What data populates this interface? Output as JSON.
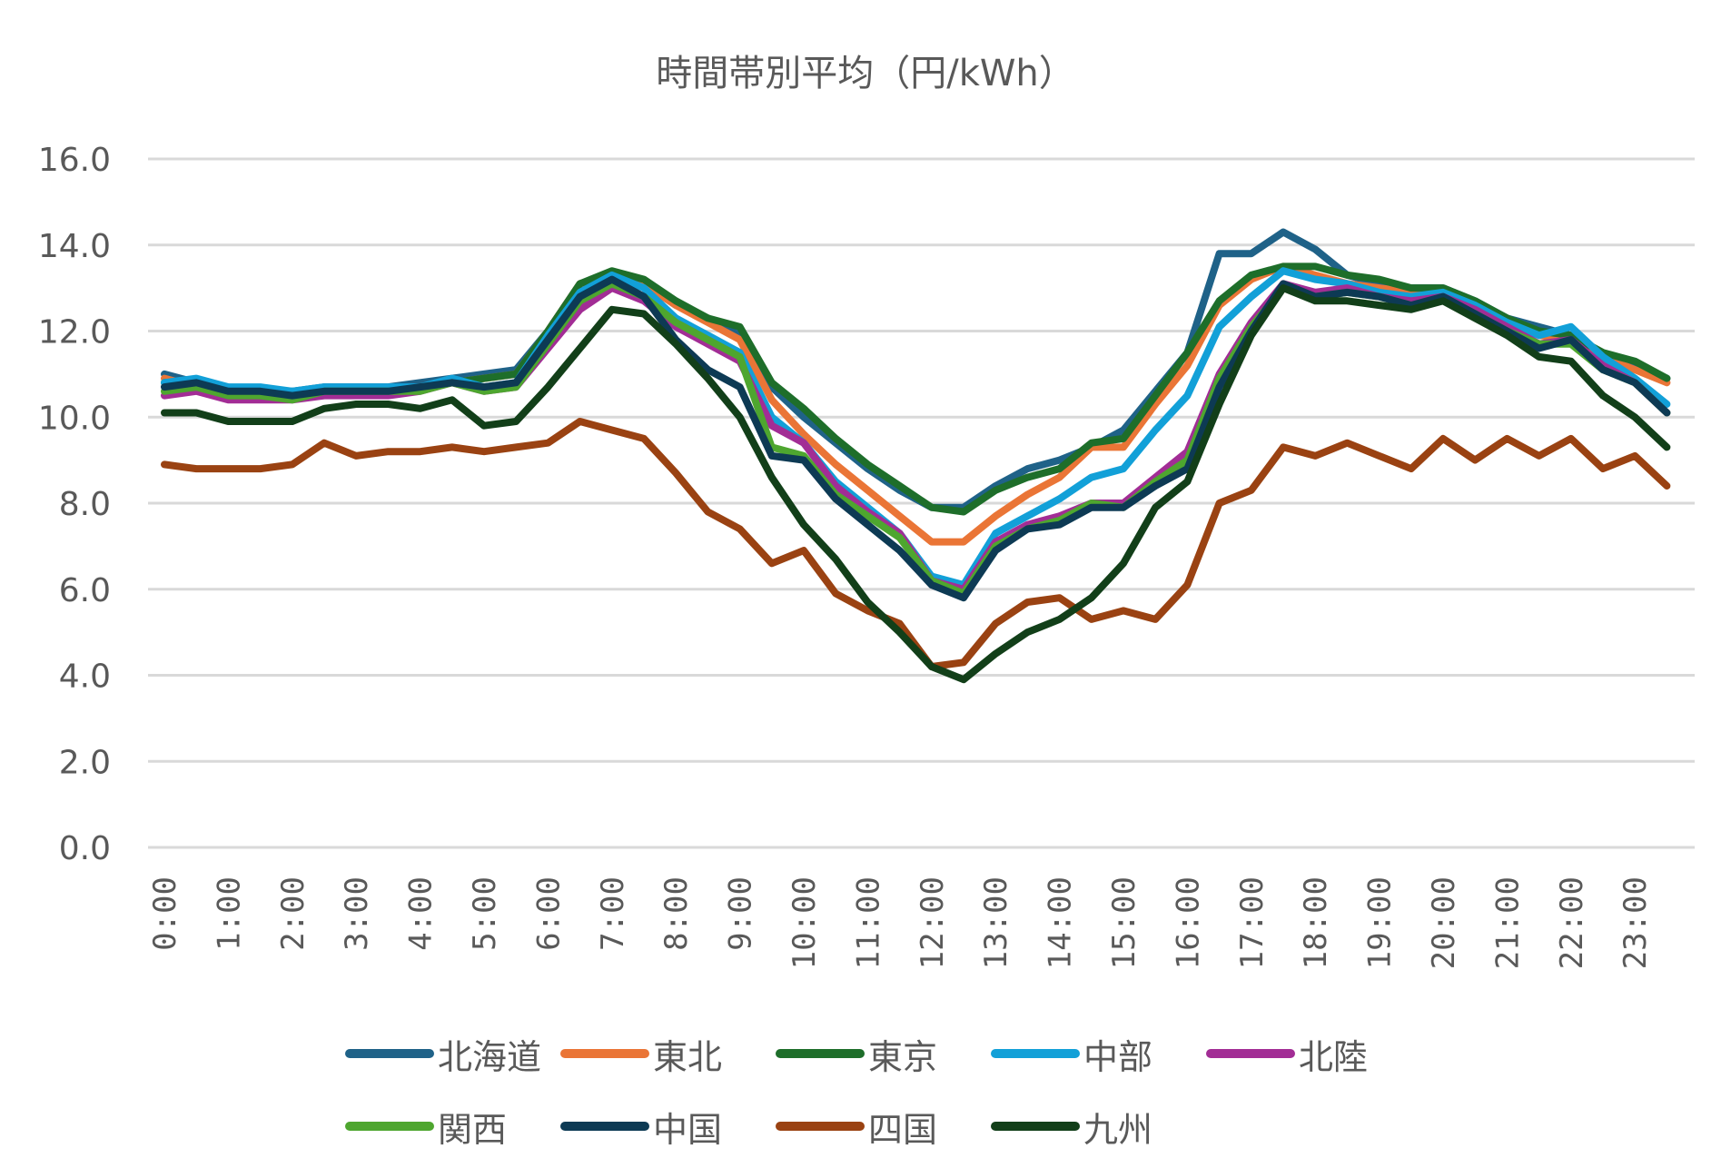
{
  "chart_data": {
    "type": "line",
    "title": "時間帯別平均（円/kWh）",
    "xlabel": "",
    "ylabel": "",
    "ylim": [
      0,
      16
    ],
    "yticks": [
      "0.0",
      "2.0",
      "4.0",
      "6.0",
      "8.0",
      "10.0",
      "12.0",
      "14.0",
      "16.0"
    ],
    "grid": true,
    "legend_position": "bottom",
    "x": [
      "0:00",
      "0:30",
      "1:00",
      "1:30",
      "2:00",
      "2:30",
      "3:00",
      "3:30",
      "4:00",
      "4:30",
      "5:00",
      "5:30",
      "6:00",
      "6:30",
      "7:00",
      "7:30",
      "8:00",
      "8:30",
      "9:00",
      "9:30",
      "10:00",
      "10:30",
      "11:00",
      "11:30",
      "12:00",
      "12:30",
      "13:00",
      "13:30",
      "14:00",
      "14:30",
      "15:00",
      "15:30",
      "16:00",
      "16:30",
      "17:00",
      "17:30",
      "18:00",
      "18:30",
      "19:00",
      "19:30",
      "20:00",
      "20:30",
      "21:00",
      "21:30",
      "22:00",
      "22:30",
      "23:00",
      "23:30"
    ],
    "xtick_labels": [
      "0:00",
      "1:00",
      "2:00",
      "3:00",
      "4:00",
      "5:00",
      "6:00",
      "7:00",
      "8:00",
      "9:00",
      "10:00",
      "11:00",
      "12:00",
      "13:00",
      "14:00",
      "15:00",
      "16:00",
      "17:00",
      "18:00",
      "19:00",
      "20:00",
      "21:00",
      "22:00",
      "23:00"
    ],
    "series": [
      {
        "name": "北海道",
        "color": "#1f6288",
        "values": [
          11.0,
          10.8,
          10.6,
          10.6,
          10.6,
          10.7,
          10.7,
          10.7,
          10.8,
          10.9,
          11.0,
          11.1,
          12.0,
          13.1,
          13.3,
          13.1,
          12.6,
          12.3,
          11.9,
          10.7,
          10.0,
          9.4,
          8.8,
          8.3,
          7.9,
          7.9,
          8.4,
          8.8,
          9.0,
          9.3,
          9.7,
          10.6,
          11.5,
          13.8,
          13.8,
          14.3,
          13.9,
          13.3,
          13.1,
          13.0,
          13.0,
          12.7,
          12.3,
          12.1,
          11.9,
          11.4,
          11.2,
          10.9
        ]
      },
      {
        "name": "東北",
        "color": "#ea7536",
        "values": [
          10.9,
          10.7,
          10.6,
          10.6,
          10.5,
          10.6,
          10.6,
          10.6,
          10.7,
          10.8,
          10.9,
          11.0,
          12.0,
          13.1,
          13.3,
          13.1,
          12.6,
          12.2,
          11.8,
          10.4,
          9.6,
          8.9,
          8.3,
          7.7,
          7.1,
          7.1,
          7.7,
          8.2,
          8.6,
          9.3,
          9.3,
          10.3,
          11.2,
          12.6,
          13.2,
          13.5,
          13.3,
          13.1,
          13.0,
          12.9,
          12.9,
          12.6,
          12.2,
          11.9,
          11.8,
          11.4,
          11.1,
          10.8
        ]
      },
      {
        "name": "東京",
        "color": "#1e6e2a",
        "values": [
          10.8,
          10.8,
          10.6,
          10.6,
          10.5,
          10.6,
          10.6,
          10.6,
          10.7,
          10.8,
          10.9,
          11.0,
          12.0,
          13.1,
          13.4,
          13.2,
          12.7,
          12.3,
          12.1,
          10.8,
          10.2,
          9.5,
          8.9,
          8.4,
          7.9,
          7.8,
          8.3,
          8.6,
          8.8,
          9.4,
          9.5,
          10.5,
          11.5,
          12.7,
          13.3,
          13.5,
          13.5,
          13.3,
          13.2,
          13.0,
          13.0,
          12.7,
          12.3,
          12.0,
          11.9,
          11.5,
          11.3,
          10.9
        ]
      },
      {
        "name": "中部",
        "color": "#12a0d8",
        "values": [
          10.8,
          10.9,
          10.7,
          10.7,
          10.6,
          10.7,
          10.7,
          10.7,
          10.7,
          10.9,
          10.7,
          10.8,
          11.9,
          12.9,
          13.3,
          13.0,
          12.3,
          11.9,
          11.5,
          10.0,
          9.4,
          8.5,
          7.9,
          7.3,
          6.3,
          6.1,
          7.3,
          7.7,
          8.1,
          8.6,
          8.8,
          9.7,
          10.5,
          12.1,
          12.8,
          13.4,
          13.2,
          13.1,
          12.9,
          12.8,
          12.9,
          12.6,
          12.2,
          11.9,
          12.1,
          11.4,
          10.9,
          10.3
        ]
      },
      {
        "name": "北陸",
        "color": "#a22d95",
        "values": [
          10.5,
          10.6,
          10.4,
          10.4,
          10.4,
          10.5,
          10.5,
          10.5,
          10.6,
          10.8,
          10.6,
          10.7,
          11.6,
          12.5,
          13.0,
          12.7,
          12.1,
          11.7,
          11.3,
          9.8,
          9.4,
          8.4,
          7.8,
          7.3,
          6.2,
          6.0,
          7.1,
          7.5,
          7.7,
          8.0,
          8.0,
          8.6,
          9.2,
          11.0,
          12.2,
          13.1,
          12.9,
          13.0,
          12.8,
          12.7,
          12.8,
          12.5,
          12.1,
          11.7,
          11.8,
          11.2,
          10.8,
          10.1
        ]
      },
      {
        "name": "関西",
        "color": "#4ea62f",
        "values": [
          10.6,
          10.7,
          10.5,
          10.5,
          10.4,
          10.6,
          10.6,
          10.6,
          10.6,
          10.8,
          10.6,
          10.7,
          11.7,
          12.7,
          13.1,
          12.8,
          12.2,
          11.8,
          11.4,
          9.3,
          9.1,
          8.2,
          7.7,
          7.2,
          6.2,
          5.9,
          7.0,
          7.4,
          7.6,
          8.0,
          7.9,
          8.5,
          9.0,
          10.9,
          12.1,
          13.0,
          12.8,
          12.9,
          12.8,
          12.6,
          12.7,
          12.4,
          12.0,
          11.7,
          11.7,
          11.1,
          10.8,
          10.1
        ]
      },
      {
        "name": "中国",
        "color": "#0d3a54",
        "values": [
          10.7,
          10.8,
          10.6,
          10.6,
          10.5,
          10.6,
          10.6,
          10.6,
          10.7,
          10.8,
          10.7,
          10.8,
          11.8,
          12.8,
          13.2,
          12.8,
          11.8,
          11.1,
          10.7,
          9.1,
          9.0,
          8.1,
          7.5,
          6.9,
          6.1,
          5.8,
          6.9,
          7.4,
          7.5,
          7.9,
          7.9,
          8.4,
          8.8,
          10.7,
          12.0,
          13.1,
          12.8,
          12.9,
          12.8,
          12.6,
          12.8,
          12.4,
          12.0,
          11.6,
          11.8,
          11.1,
          10.8,
          10.1
        ]
      },
      {
        "name": "四国",
        "color": "#9a4212",
        "values": [
          8.9,
          8.8,
          8.8,
          8.8,
          8.9,
          9.4,
          9.1,
          9.2,
          9.2,
          9.3,
          9.2,
          9.3,
          9.4,
          9.9,
          9.7,
          9.5,
          8.7,
          7.8,
          7.4,
          6.6,
          6.9,
          5.9,
          5.5,
          5.2,
          4.2,
          4.3,
          5.2,
          5.7,
          5.8,
          5.3,
          5.5,
          5.3,
          6.1,
          8.0,
          8.3,
          9.3,
          9.1,
          9.4,
          9.1,
          8.8,
          9.5,
          9.0,
          9.5,
          9.1,
          9.5,
          8.8,
          9.1,
          8.4
        ]
      },
      {
        "name": "九州",
        "color": "#123f19",
        "values": [
          10.1,
          10.1,
          9.9,
          9.9,
          9.9,
          10.2,
          10.3,
          10.3,
          10.2,
          10.4,
          9.8,
          9.9,
          10.7,
          11.6,
          12.5,
          12.4,
          11.7,
          10.9,
          10.0,
          8.6,
          7.5,
          6.7,
          5.7,
          5.0,
          4.2,
          3.9,
          4.5,
          5.0,
          5.3,
          5.8,
          6.6,
          7.9,
          8.5,
          10.3,
          11.9,
          13.0,
          12.7,
          12.7,
          12.6,
          12.5,
          12.7,
          12.3,
          11.9,
          11.4,
          11.3,
          10.5,
          10.0,
          9.3
        ]
      }
    ]
  }
}
